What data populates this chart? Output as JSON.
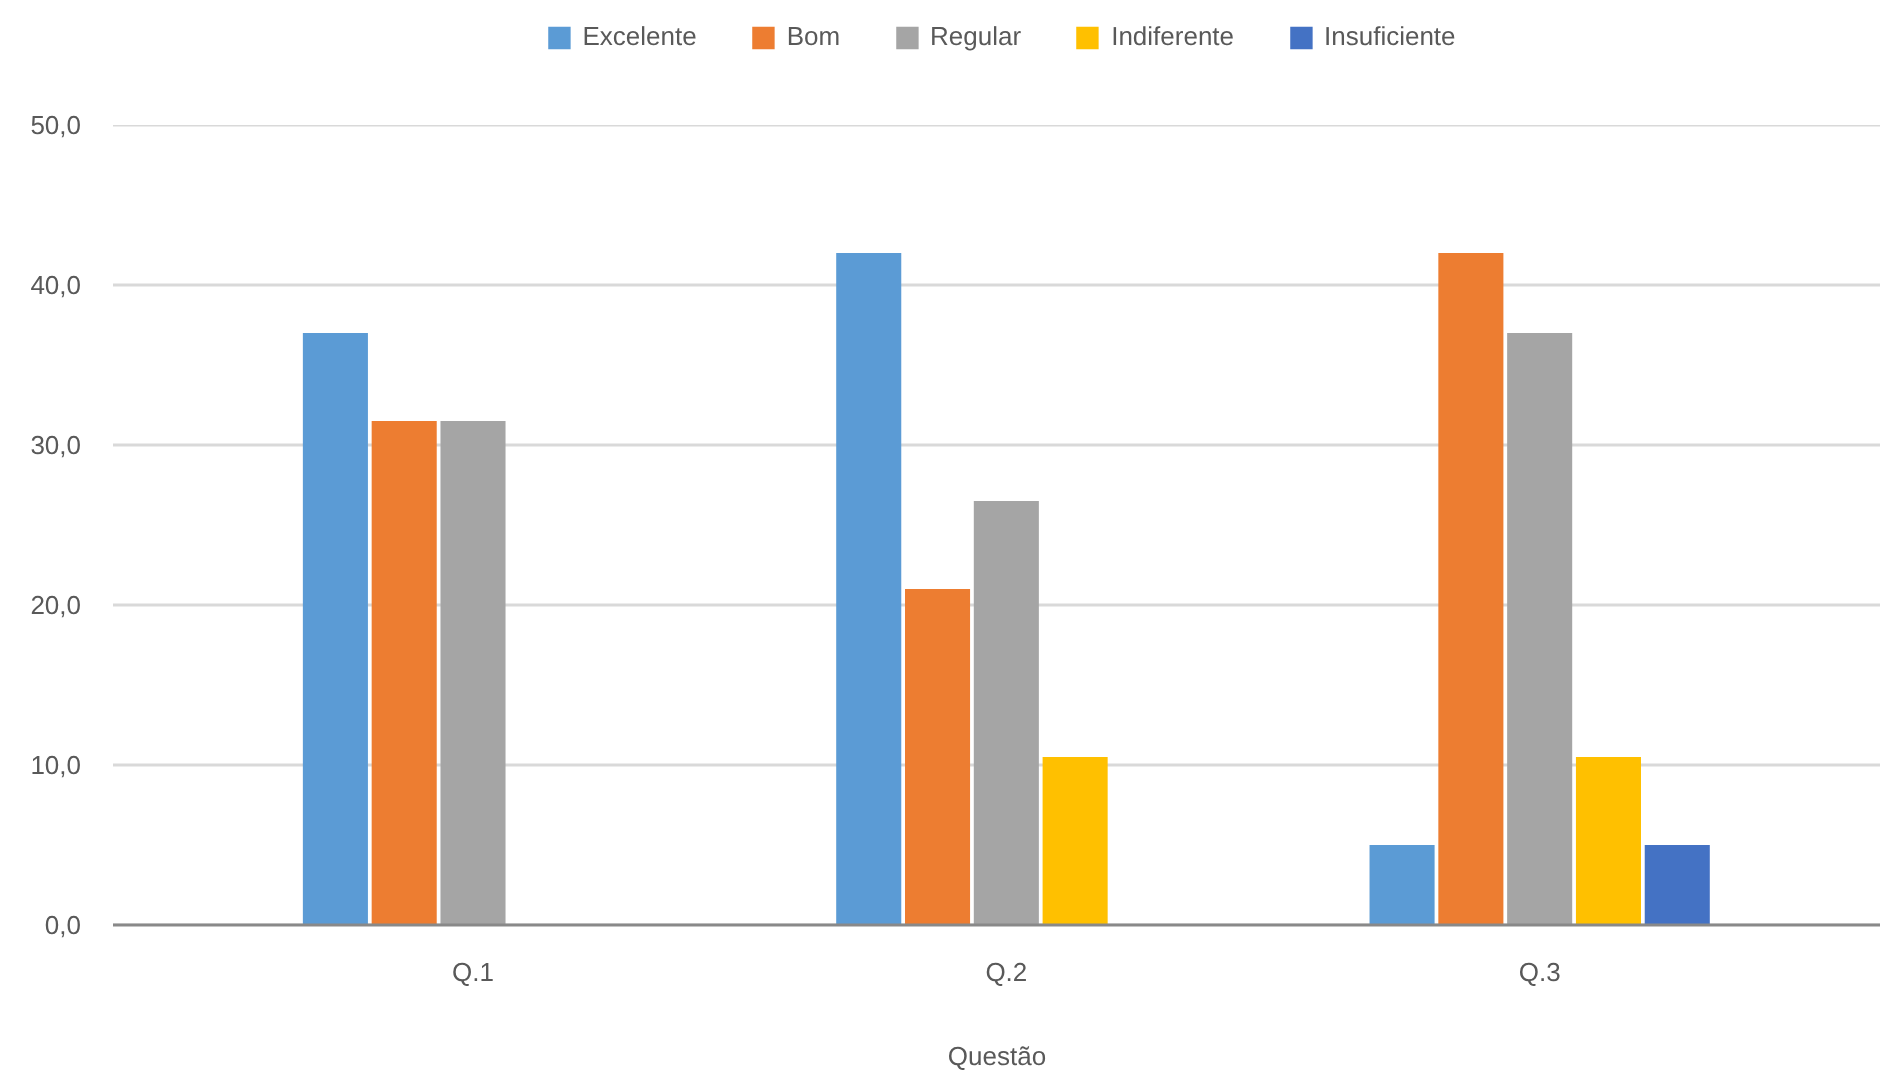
{
  "chart_data": {
    "type": "bar",
    "xlabel": "Questão",
    "categories": [
      "Q.1",
      "Q.2",
      "Q.3"
    ],
    "series": [
      {
        "name": "Excelente",
        "color": "#5b9bd5",
        "values": [
          37,
          42,
          5
        ]
      },
      {
        "name": "Bom",
        "color": "#ed7d31",
        "values": [
          31.5,
          21,
          42
        ]
      },
      {
        "name": "Regular",
        "color": "#a5a5a5",
        "values": [
          31.5,
          26.5,
          37
        ]
      },
      {
        "name": "Indiferente",
        "color": "#ffc000",
        "values": [
          null,
          10.5,
          10.5
        ]
      },
      {
        "name": "Insuficiente",
        "color": "#4472c4",
        "values": [
          null,
          null,
          5
        ]
      }
    ],
    "ylim": [
      0,
      50
    ],
    "yticks": [
      {
        "value": 0,
        "label": "0,0"
      },
      {
        "value": 10,
        "label": "10,0"
      },
      {
        "value": 20,
        "label": "20,0"
      },
      {
        "value": 30,
        "label": "30,0"
      },
      {
        "value": 40,
        "label": "40,0"
      },
      {
        "value": 50,
        "label": "50,0"
      }
    ],
    "grid": "y",
    "legend": "top"
  }
}
